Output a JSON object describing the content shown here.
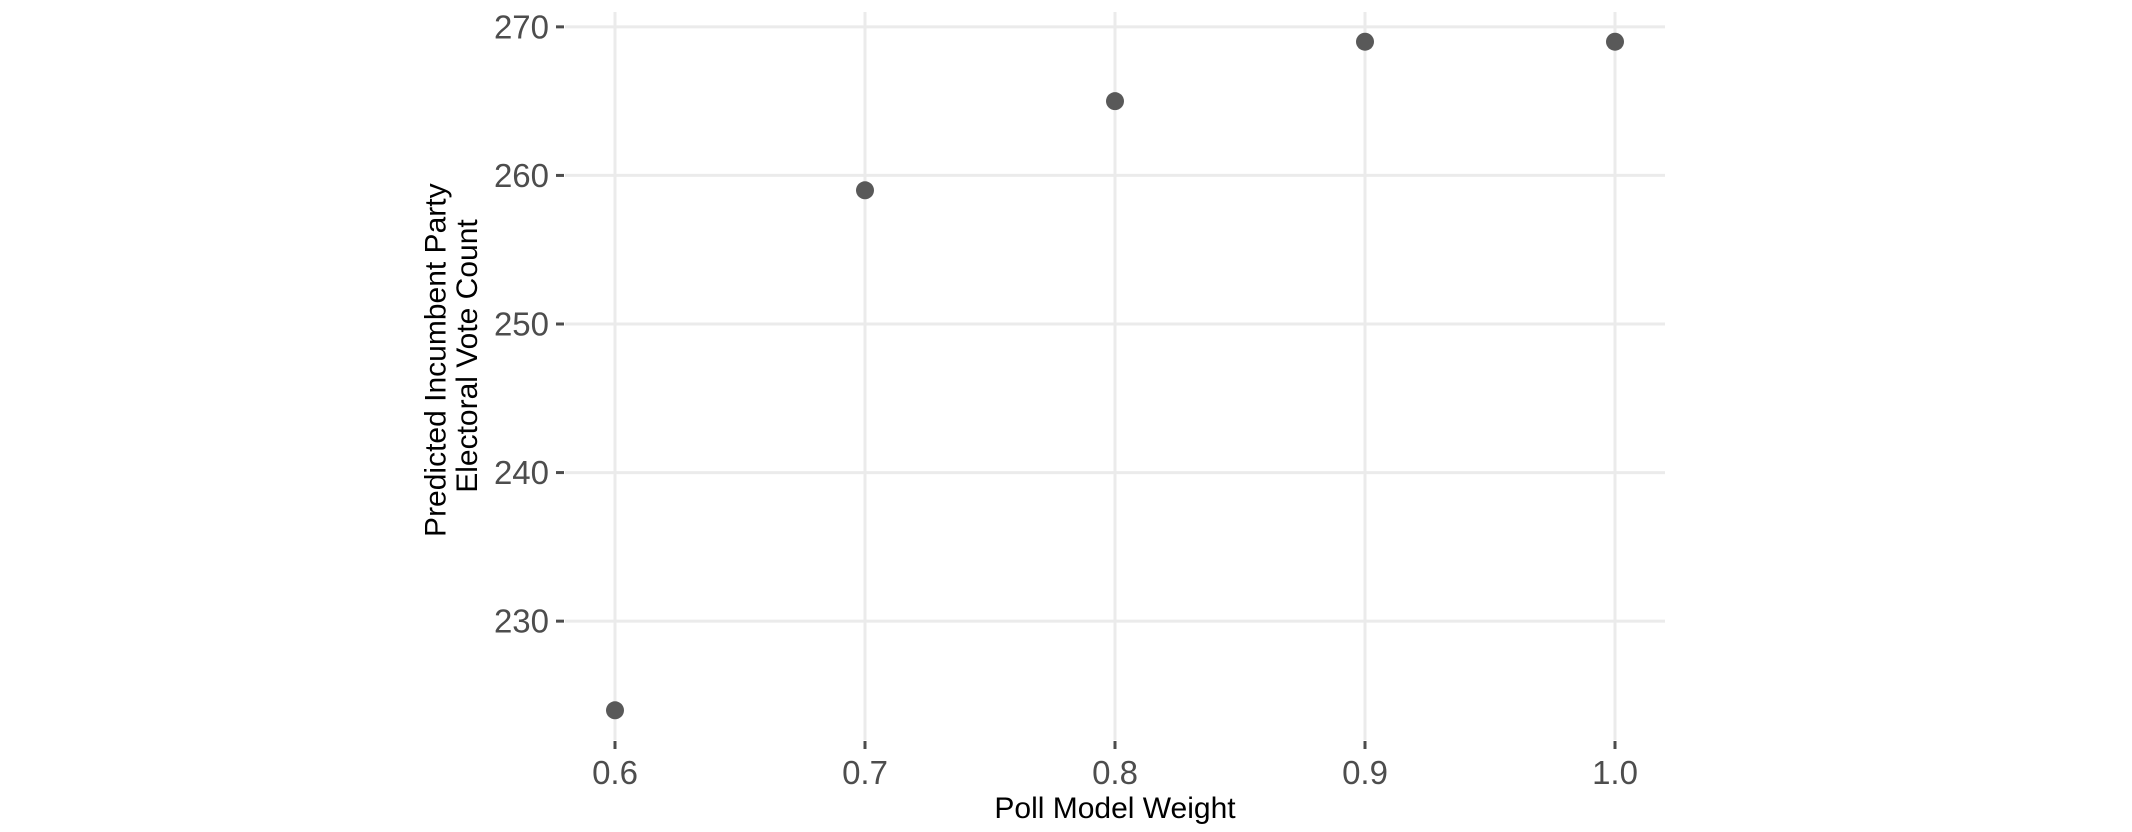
{
  "chart_data": {
    "type": "scatter",
    "title": "",
    "xlabel": "Poll Model Weight",
    "ylabel": [
      "Predicted Incumbent Party",
      "Electoral Vote Count"
    ],
    "x": [
      0.6,
      0.7,
      0.8,
      0.9,
      1.0
    ],
    "y": [
      224,
      259,
      265,
      269,
      269
    ],
    "xlim": [
      0.58,
      1.02
    ],
    "ylim": [
      222,
      271
    ],
    "x_ticks": [
      0.6,
      0.7,
      0.8,
      0.9,
      1.0
    ],
    "x_tick_labels": [
      "0.6",
      "0.7",
      "0.8",
      "0.9",
      "1.0"
    ],
    "y_ticks": [
      230,
      240,
      250,
      260,
      270
    ],
    "y_tick_labels": [
      "230",
      "240",
      "250",
      "260",
      "270"
    ],
    "grid": true,
    "legend": "none",
    "colors": {
      "point": "#595959",
      "grid": "#ebebeb",
      "tick_text": "#4d4d4d",
      "axis_title": "#000000"
    }
  }
}
